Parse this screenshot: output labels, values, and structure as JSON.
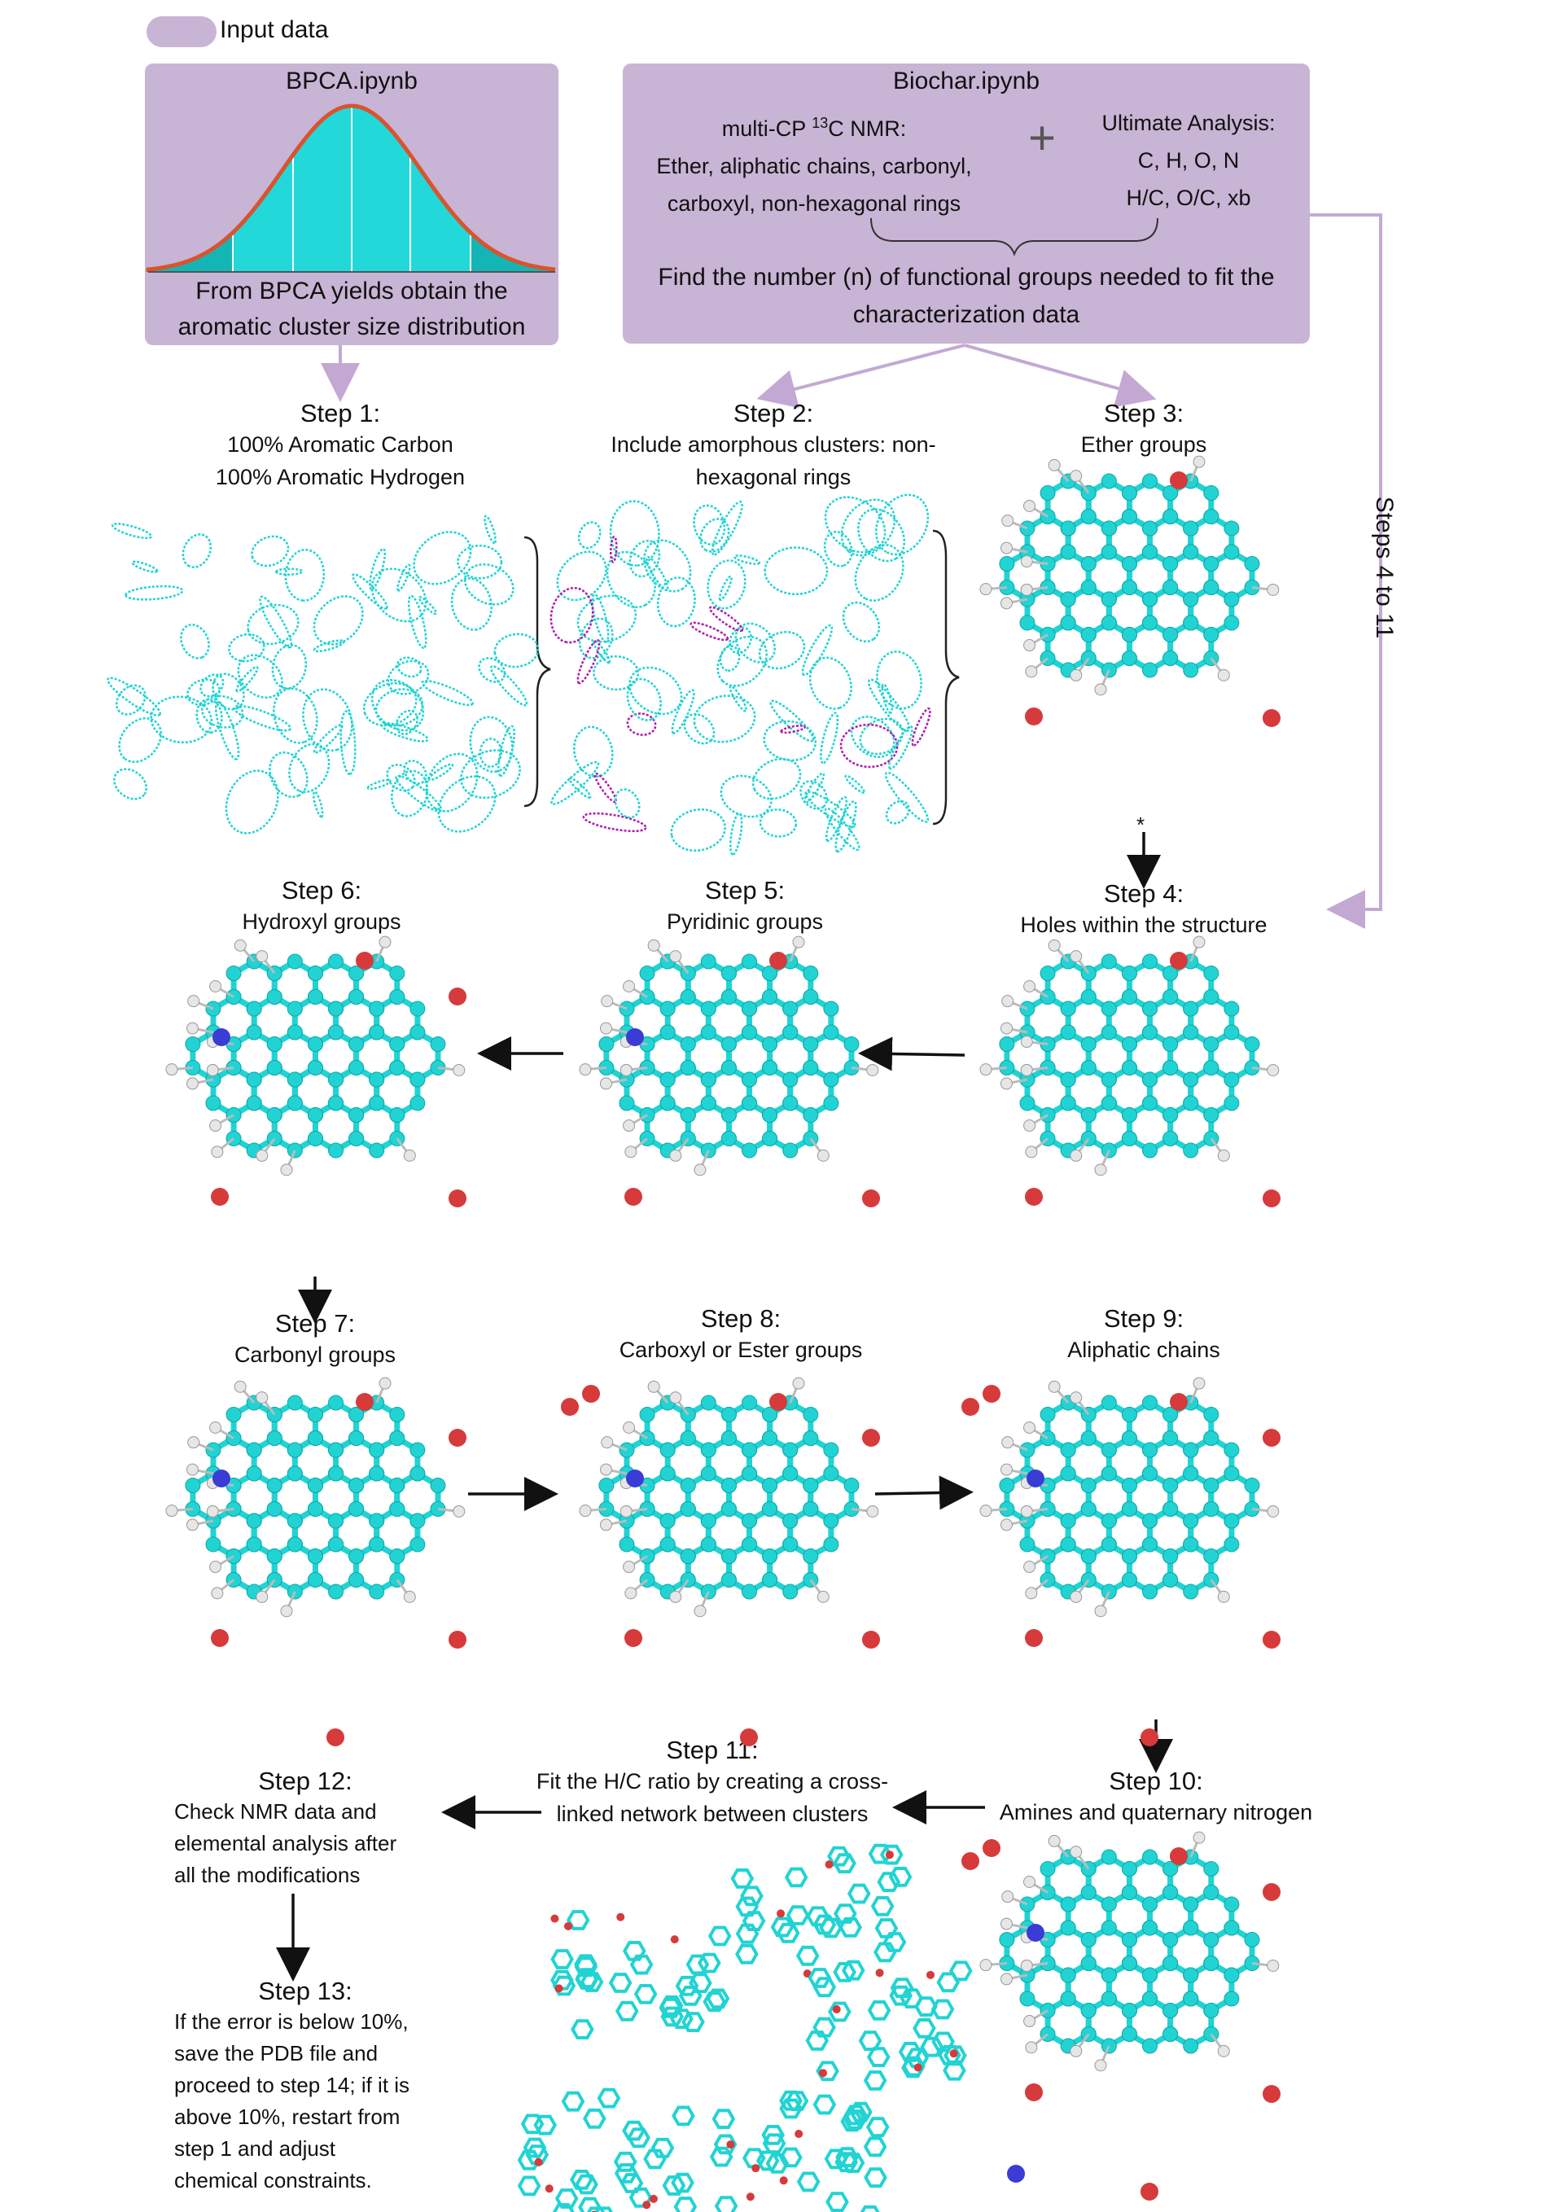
{
  "legend": {
    "label": "Input data",
    "color": "#c8b4d4"
  },
  "bpca": {
    "title": "BPCA.ipynb",
    "caption_line1": "From BPCA yields obtain the",
    "caption_line2": "aromatic cluster size distribution"
  },
  "biochar": {
    "title": "Biochar.ipynb",
    "nmr_prefix": "multi-CP ",
    "nmr_sup": "13",
    "nmr_suffix": "C NMR:",
    "nmr_line2": "Ether, aliphatic chains, carbonyl,",
    "nmr_line3": "carboxyl, non-hexagonal rings",
    "plus": "+",
    "ua_line1": "Ultimate Analysis:",
    "ua_line2": "C, H, O, N",
    "ua_line3": "H/C, O/C, xb",
    "fit_line1": "Find the number (n) of functional groups needed to fit the",
    "fit_line2": "characterization data"
  },
  "side_label": "Steps 4 to 11",
  "asterisk": "*",
  "steps": {
    "s1": {
      "title": "Step 1:",
      "line1": "100% Aromatic Carbon",
      "line2": "100% Aromatic Hydrogen"
    },
    "s2": {
      "title": "Step 2:",
      "line1": "Include amorphous clusters: non-",
      "line2": "hexagonal rings"
    },
    "s3": {
      "title": "Step 3:",
      "line1": "Ether groups"
    },
    "s4": {
      "title": "Step 4:",
      "line1": "Holes within the structure"
    },
    "s5": {
      "title": "Step 5:",
      "line1": "Pyridinic groups"
    },
    "s6": {
      "title": "Step 6:",
      "line1": "Hydroxyl groups"
    },
    "s7": {
      "title": "Step 7:",
      "line1": "Carbonyl groups"
    },
    "s8": {
      "title": "Step 8:",
      "line1": "Carboxyl or Ester groups"
    },
    "s9": {
      "title": "Step 9:",
      "line1": "Aliphatic chains"
    },
    "s10": {
      "title": "Step 10:",
      "line1": "Amines and quaternary nitrogen"
    },
    "s11": {
      "title": "Step 11:",
      "line1": "Fit the H/C ratio by creating a cross-",
      "line2": "linked network between clusters"
    },
    "s12": {
      "title": "Step 12:",
      "line1": "Check NMR data and",
      "line2": "elemental analysis after",
      "line3": "all the modifications"
    },
    "s13": {
      "title": "Step 13:",
      "line1": "If the error is below 10%,",
      "line2": "save the PDB file and",
      "line3": "proceed to step 14; if it is",
      "line4": "above 10%, restart from",
      "line5": "step 1 and adjust",
      "line6": "chemical constraints."
    }
  },
  "colors": {
    "input_box": "#c8b4d4",
    "arrow_purple": "#c4a8d4",
    "carbon": "#22d3d3",
    "oxygen": "#d63a3a",
    "nitrogen": "#3b3bd6",
    "hydrogen": "#e6e6e6",
    "amorphous": "#b01cb0",
    "bell_curve": "#d9532e",
    "bell_fill": "#22d8d8"
  }
}
